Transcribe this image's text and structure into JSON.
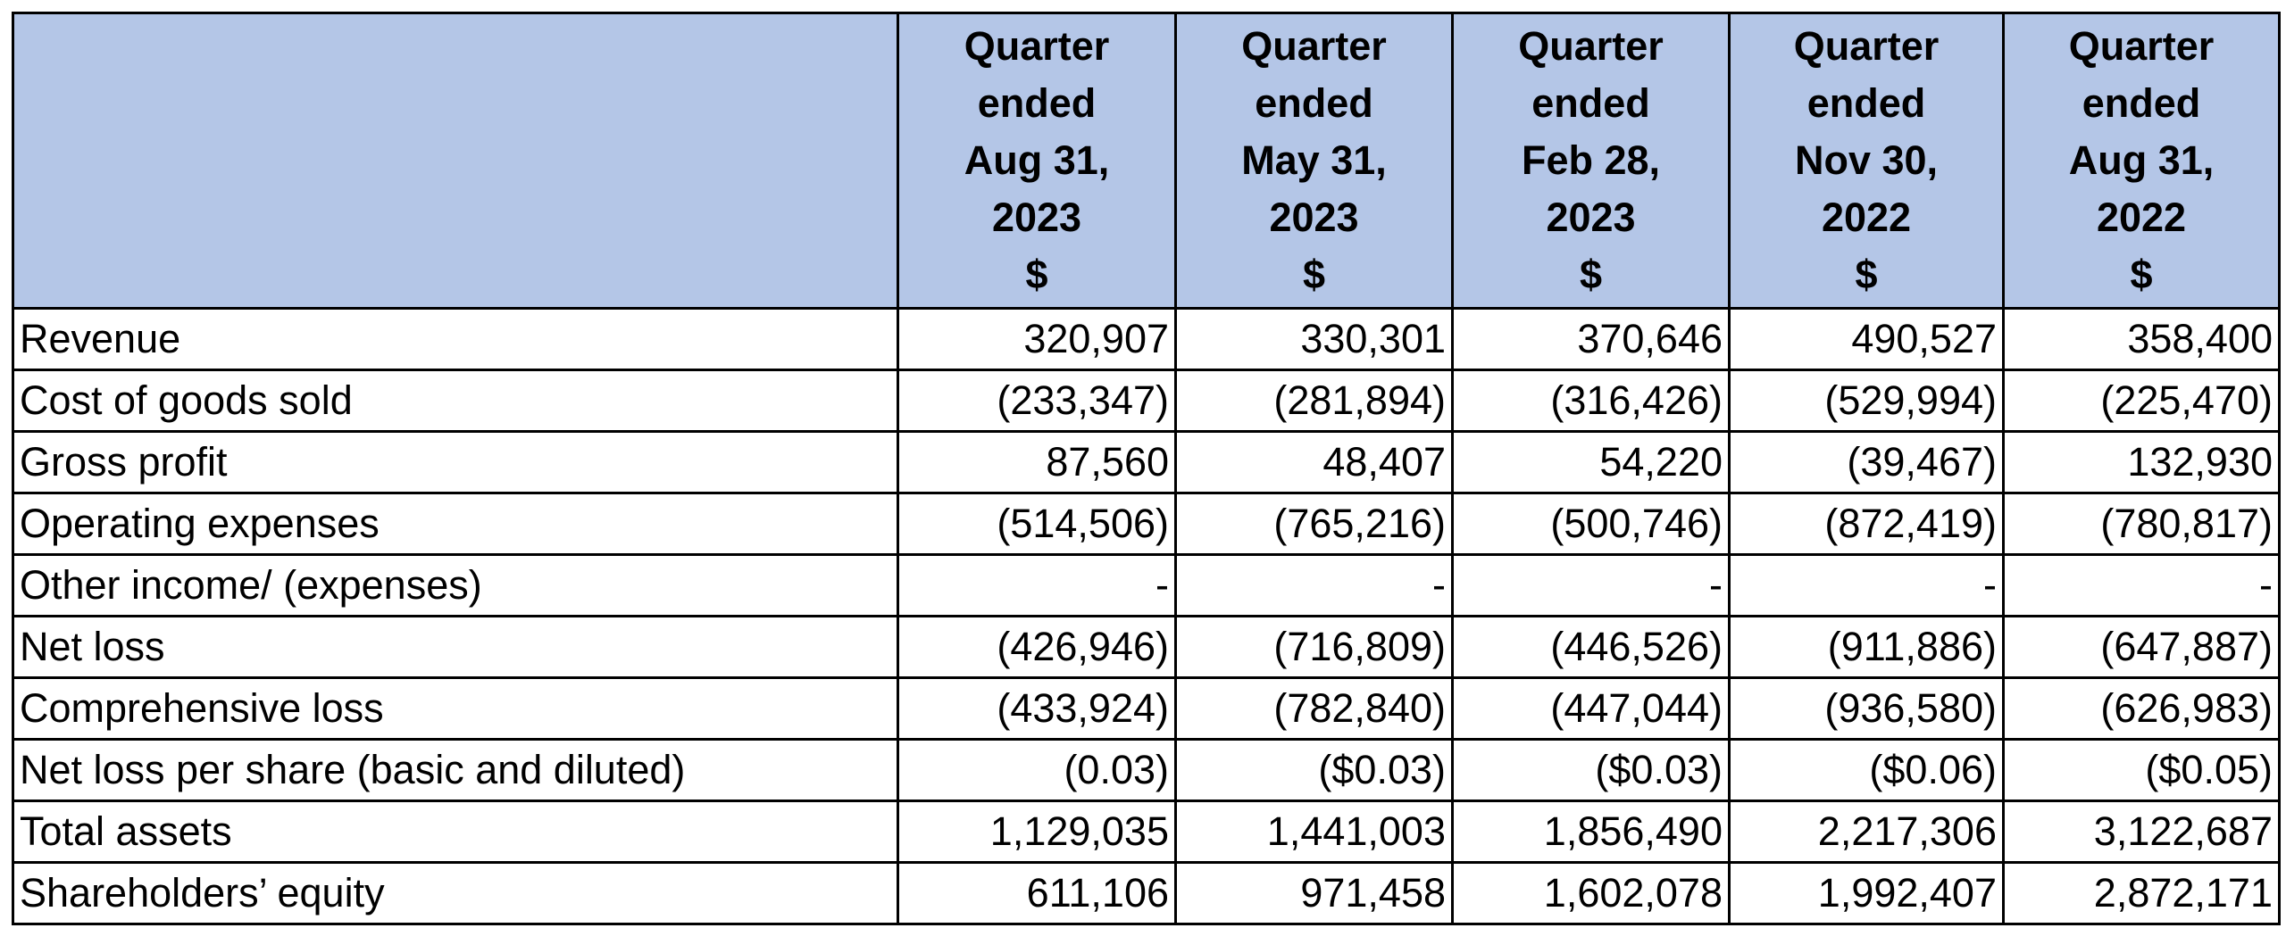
{
  "table": {
    "header": [
      [
        "Quarter",
        "ended",
        "Aug 31,",
        "2023",
        "$"
      ],
      [
        "Quarter",
        "ended",
        "May 31,",
        "2023",
        "$"
      ],
      [
        "Quarter",
        "ended",
        "Feb 28,",
        "2023",
        "$"
      ],
      [
        "Quarter",
        "ended",
        "Nov 30,",
        "2022",
        "$"
      ],
      [
        "Quarter",
        "ended",
        "Aug 31,",
        "2022",
        "$"
      ]
    ],
    "rows": [
      [
        "Revenue",
        "320,907",
        "330,301",
        "370,646",
        "490,527",
        "358,400"
      ],
      [
        "Cost of goods sold",
        "(233,347)",
        "(281,894)",
        "(316,426)",
        "(529,994)",
        "(225,470)"
      ],
      [
        "Gross profit",
        "87,560",
        "48,407",
        "54,220",
        "(39,467)",
        "132,930"
      ],
      [
        "Operating expenses",
        "(514,506)",
        "(765,216)",
        "(500,746)",
        "(872,419)",
        "(780,817)"
      ],
      [
        "Other income/ (expenses)",
        "-",
        "-",
        "-",
        "-",
        "-"
      ],
      [
        "Net loss",
        "(426,946)",
        "(716,809)",
        "(446,526)",
        "(911,886)",
        "(647,887)"
      ],
      [
        "Comprehensive loss",
        "(433,924)",
        "(782,840)",
        "(447,044)",
        "(936,580)",
        "(626,983)"
      ],
      [
        "Net loss per share (basic and diluted)",
        "(0.03)",
        "($0.03)",
        "($0.03)",
        "($0.06)",
        "($0.05)"
      ],
      [
        "Total assets",
        "1,129,035",
        "1,441,003",
        "1,856,490",
        "2,217,306",
        "3,122,687"
      ],
      [
        "Shareholders’ equity",
        "611,106",
        "971,458",
        "1,602,078",
        "1,992,407",
        "2,872,171"
      ]
    ]
  }
}
